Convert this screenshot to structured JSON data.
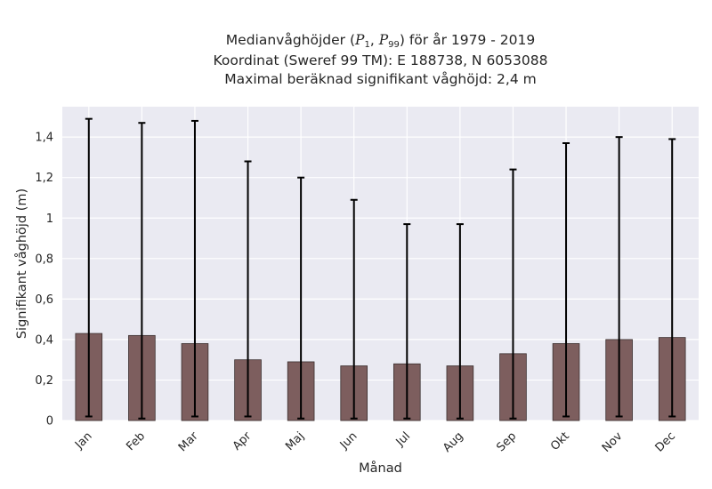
{
  "chart_data": {
    "type": "bar",
    "title_line1_pre": "Medianvåghöjder (",
    "title_p": "P",
    "title_sub1": "1",
    "title_sep": ", ",
    "title_sub2": "99",
    "title_line1_post": ") för år 1979 - 2019",
    "title_line2": "Koordinat (Sweref 99 TM): E 188738, N 6053088",
    "title_line3": "Maximal beräknad signifikant våghöjd: 2,4 m",
    "xlabel": "Månad",
    "ylabel": "Signifikant våghöjd (m)",
    "ylim": [
      0,
      1.55
    ],
    "yticks": [
      0,
      0.2,
      0.4,
      0.6,
      0.8,
      1.0,
      1.2,
      1.4
    ],
    "ytick_labels": [
      "0",
      "0,2",
      "0,4",
      "0,6",
      "0,8",
      "1",
      "1,2",
      "1,4"
    ],
    "categories": [
      "Jan",
      "Feb",
      "Mar",
      "Apr",
      "Maj",
      "Jun",
      "Jul",
      "Aug",
      "Sep",
      "Okt",
      "Nov",
      "Dec"
    ],
    "values": [
      0.43,
      0.42,
      0.38,
      0.3,
      0.29,
      0.27,
      0.28,
      0.27,
      0.33,
      0.38,
      0.4,
      0.41
    ],
    "p1": [
      0.02,
      0.01,
      0.02,
      0.02,
      0.01,
      0.01,
      0.01,
      0.01,
      0.01,
      0.02,
      0.02,
      0.02
    ],
    "p99": [
      1.49,
      1.47,
      1.48,
      1.28,
      1.2,
      1.09,
      0.97,
      0.97,
      1.24,
      1.37,
      1.4,
      1.39
    ],
    "grid": true,
    "bar_color": "#7d5e5e",
    "errorbar_color": "#000000",
    "background_color": "#eaeaf2"
  }
}
